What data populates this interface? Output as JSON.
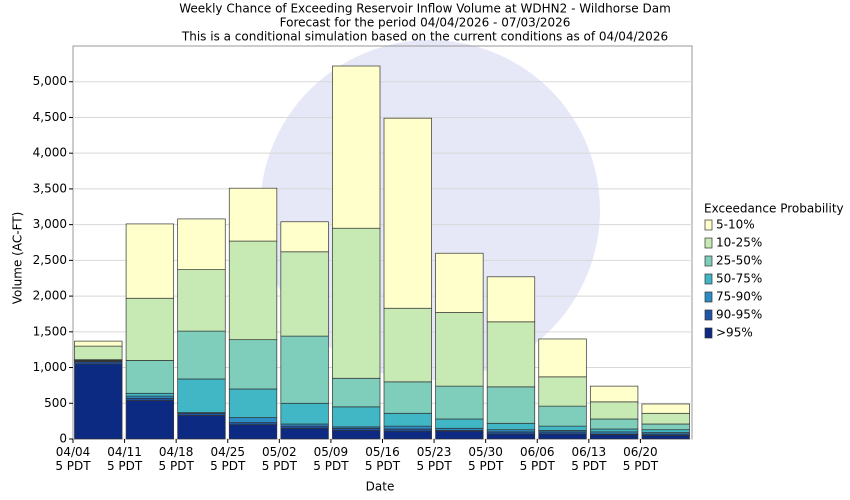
{
  "chart_data": {
    "type": "stacked_bar",
    "title": "Weekly Chance of Exceeding Reservoir Inflow Volume at WDHN2 - Wildhorse Dam",
    "subtitle": "Forecast for the period 04/04/2026 - 07/03/2026",
    "note": "This is a conditional simulation based on the current conditions as of 04/04/2026",
    "x_label": "Date",
    "y_label": "Volume (AC-FT)",
    "legend_title": "Exceedance Probability",
    "categories": [
      "04/04 5 PDT",
      "04/11 5 PDT",
      "04/18 5 PDT",
      "04/25 5 PDT",
      "05/02 5 PDT",
      "05/09 5 PDT",
      "05/16 5 PDT",
      "05/23 5 PDT",
      "05/30 5 PDT",
      "06/06 5 PDT",
      "06/13 5 PDT",
      "06/20 5 PDT"
    ],
    "series": [
      {
        "name": ">95%",
        "color": "#0c2a82",
        "values": [
          1050,
          540,
          330,
          200,
          150,
          120,
          110,
          110,
          70,
          70,
          60,
          50
        ]
      },
      {
        "name": "90-95%",
        "color": "#1f55a3",
        "values": [
          30,
          30,
          30,
          30,
          30,
          30,
          30,
          10,
          30,
          30,
          10,
          20
        ]
      },
      {
        "name": "75-90%",
        "color": "#2c8cc6",
        "values": [
          10,
          30,
          10,
          70,
          30,
          20,
          40,
          30,
          30,
          20,
          30,
          20
        ]
      },
      {
        "name": "50-75%",
        "color": "#41b6c4",
        "values": [
          10,
          40,
          470,
          400,
          290,
          280,
          180,
          130,
          90,
          60,
          40,
          40
        ]
      },
      {
        "name": "25-50%",
        "color": "#7fcdbb",
        "values": [
          10,
          460,
          670,
          690,
          940,
          400,
          440,
          460,
          510,
          280,
          140,
          80
        ]
      },
      {
        "name": "10-25%",
        "color": "#c7e9b4",
        "values": [
          190,
          870,
          860,
          1380,
          1180,
          2100,
          1030,
          1030,
          910,
          410,
          240,
          150
        ]
      },
      {
        "name": "5-10%",
        "color": "#ffffcc",
        "values": [
          70,
          1040,
          710,
          740,
          420,
          2270,
          2660,
          830,
          630,
          530,
          220,
          130
        ]
      }
    ],
    "ylim": [
      0,
      5500
    ],
    "yticks": [
      0,
      500,
      {
        "value": 1000,
        "label": "1,000"
      },
      {
        "value": 1500,
        "label": "1,500"
      },
      {
        "value": 2000,
        "label": "2,000"
      },
      {
        "value": 2500,
        "label": "2,500"
      },
      {
        "value": 3000,
        "label": "3,000"
      },
      {
        "value": 3500,
        "label": "3,500"
      },
      {
        "value": 4000,
        "label": "4,000"
      },
      {
        "value": 4500,
        "label": "4,500"
      },
      {
        "value": 5000,
        "label": "5,000"
      }
    ],
    "grid": true
  }
}
